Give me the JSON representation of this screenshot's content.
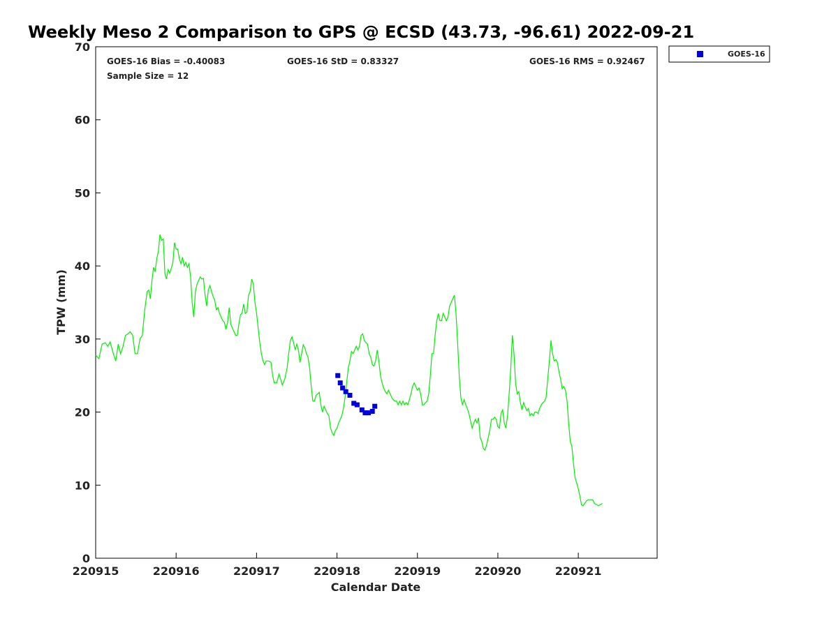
{
  "chart_data": {
    "type": "line",
    "title": "Weekly Meso 2 Comparison to GPS @ ECSD (43.73, -96.61) 2022-09-21",
    "xlabel": "Calendar Date",
    "ylabel": "TPW (mm)",
    "xlim": [
      0,
      6.98
    ],
    "ylim": [
      0,
      70
    ],
    "grid": false,
    "legend_position": "top-right",
    "x_tick_labels": [
      "220915",
      "220916",
      "220917",
      "220918",
      "220919",
      "220920",
      "220921"
    ],
    "y_tick_labels": [
      "0",
      "10",
      "20",
      "30",
      "40",
      "50",
      "60",
      "70"
    ],
    "stats": {
      "bias": "GOES-16 Bias = -0.40083",
      "std": "GOES-16 StD = 0.83327",
      "rms": "GOES-16 RMS = 0.92467",
      "sample": "Sample Size = 12"
    },
    "series": [
      {
        "color": "#00ee00",
        "style": "line",
        "points": [
          [
            0.0,
            27.8
          ],
          [
            0.04,
            27.3
          ],
          [
            0.08,
            29.3
          ],
          [
            0.12,
            29.5
          ],
          [
            0.15,
            29.0
          ],
          [
            0.18,
            29.6
          ],
          [
            0.22,
            28.0
          ],
          [
            0.25,
            27.0
          ],
          [
            0.28,
            29.3
          ],
          [
            0.31,
            28.0
          ],
          [
            0.34,
            29.0
          ],
          [
            0.37,
            30.5
          ],
          [
            0.4,
            30.7
          ],
          [
            0.43,
            31.0
          ],
          [
            0.46,
            30.5
          ],
          [
            0.49,
            28.0
          ],
          [
            0.52,
            28.0
          ],
          [
            0.55,
            30.0
          ],
          [
            0.58,
            30.5
          ],
          [
            0.61,
            34.0
          ],
          [
            0.64,
            36.5
          ],
          [
            0.66,
            36.7
          ],
          [
            0.68,
            35.5
          ],
          [
            0.7,
            38.0
          ],
          [
            0.72,
            39.8
          ],
          [
            0.74,
            39.2
          ],
          [
            0.76,
            41.0
          ],
          [
            0.78,
            42.0
          ],
          [
            0.8,
            44.3
          ],
          [
            0.82,
            43.5
          ],
          [
            0.84,
            43.7
          ],
          [
            0.86,
            39.0
          ],
          [
            0.88,
            38.2
          ],
          [
            0.9,
            39.5
          ],
          [
            0.92,
            39.0
          ],
          [
            0.94,
            39.7
          ],
          [
            0.96,
            40.5
          ],
          [
            0.98,
            43.2
          ],
          [
            1.0,
            42.3
          ],
          [
            1.02,
            42.3
          ],
          [
            1.04,
            41.0
          ],
          [
            1.06,
            40.3
          ],
          [
            1.08,
            41.2
          ],
          [
            1.1,
            40.0
          ],
          [
            1.12,
            40.5
          ],
          [
            1.14,
            39.8
          ],
          [
            1.16,
            40.3
          ],
          [
            1.18,
            38.5
          ],
          [
            1.2,
            35.0
          ],
          [
            1.22,
            33.0
          ],
          [
            1.24,
            36.5
          ],
          [
            1.26,
            37.5
          ],
          [
            1.28,
            38.0
          ],
          [
            1.3,
            38.5
          ],
          [
            1.32,
            38.2
          ],
          [
            1.34,
            38.3
          ],
          [
            1.36,
            36.0
          ],
          [
            1.38,
            34.5
          ],
          [
            1.4,
            36.7
          ],
          [
            1.42,
            37.3
          ],
          [
            1.44,
            36.5
          ],
          [
            1.46,
            35.8
          ],
          [
            1.48,
            35.3
          ],
          [
            1.5,
            34.0
          ],
          [
            1.52,
            34.3
          ],
          [
            1.54,
            33.5
          ],
          [
            1.56,
            33.0
          ],
          [
            1.58,
            32.5
          ],
          [
            1.6,
            32.3
          ],
          [
            1.62,
            31.3
          ],
          [
            1.64,
            32.3
          ],
          [
            1.66,
            34.3
          ],
          [
            1.68,
            32.0
          ],
          [
            1.7,
            31.5
          ],
          [
            1.72,
            31.0
          ],
          [
            1.74,
            30.5
          ],
          [
            1.76,
            30.5
          ],
          [
            1.78,
            32.0
          ],
          [
            1.8,
            33.3
          ],
          [
            1.82,
            33.5
          ],
          [
            1.84,
            34.8
          ],
          [
            1.86,
            33.5
          ],
          [
            1.88,
            33.7
          ],
          [
            1.9,
            36.0
          ],
          [
            1.92,
            36.5
          ],
          [
            1.94,
            38.2
          ],
          [
            1.96,
            37.5
          ],
          [
            1.98,
            35.0
          ],
          [
            2.0,
            33.5
          ],
          [
            2.02,
            31.5
          ],
          [
            2.04,
            29.5
          ],
          [
            2.06,
            28.0
          ],
          [
            2.08,
            27.0
          ],
          [
            2.1,
            26.5
          ],
          [
            2.12,
            27.0
          ],
          [
            2.15,
            27.0
          ],
          [
            2.18,
            26.8
          ],
          [
            2.2,
            25.0
          ],
          [
            2.22,
            24.0
          ],
          [
            2.25,
            24.0
          ],
          [
            2.28,
            25.2
          ],
          [
            2.3,
            24.5
          ],
          [
            2.32,
            23.7
          ],
          [
            2.35,
            24.5
          ],
          [
            2.38,
            26.0
          ],
          [
            2.4,
            28.0
          ],
          [
            2.42,
            29.8
          ],
          [
            2.44,
            30.3
          ],
          [
            2.46,
            29.5
          ],
          [
            2.48,
            28.5
          ],
          [
            2.5,
            29.3
          ],
          [
            2.52,
            28.5
          ],
          [
            2.54,
            26.8
          ],
          [
            2.56,
            28.0
          ],
          [
            2.58,
            29.2
          ],
          [
            2.6,
            28.8
          ],
          [
            2.62,
            28.0
          ],
          [
            2.64,
            27.5
          ],
          [
            2.66,
            26.0
          ],
          [
            2.68,
            23.5
          ],
          [
            2.7,
            21.5
          ],
          [
            2.72,
            21.5
          ],
          [
            2.74,
            22.3
          ],
          [
            2.76,
            22.5
          ],
          [
            2.78,
            22.7
          ],
          [
            2.8,
            21.0
          ],
          [
            2.82,
            20.0
          ],
          [
            2.84,
            20.8
          ],
          [
            2.86,
            20.3
          ],
          [
            2.88,
            19.8
          ],
          [
            2.9,
            19.5
          ],
          [
            2.92,
            17.8
          ],
          [
            2.94,
            17.2
          ],
          [
            2.96,
            16.8
          ],
          [
            2.98,
            17.5
          ],
          [
            3.0,
            17.8
          ],
          [
            3.02,
            18.5
          ],
          [
            3.04,
            19.0
          ],
          [
            3.06,
            19.5
          ],
          [
            3.08,
            20.5
          ],
          [
            3.1,
            22.0
          ],
          [
            3.12,
            24.0
          ],
          [
            3.14,
            26.0
          ],
          [
            3.16,
            27.0
          ],
          [
            3.18,
            28.3
          ],
          [
            3.2,
            28.0
          ],
          [
            3.22,
            28.5
          ],
          [
            3.24,
            29.0
          ],
          [
            3.26,
            28.5
          ],
          [
            3.28,
            29.0
          ],
          [
            3.3,
            30.5
          ],
          [
            3.32,
            30.7
          ],
          [
            3.34,
            29.8
          ],
          [
            3.36,
            29.5
          ],
          [
            3.38,
            29.3
          ],
          [
            3.4,
            28.0
          ],
          [
            3.42,
            27.5
          ],
          [
            3.44,
            26.5
          ],
          [
            3.46,
            26.3
          ],
          [
            3.48,
            27.0
          ],
          [
            3.5,
            28.5
          ],
          [
            3.52,
            27.0
          ],
          [
            3.54,
            25.0
          ],
          [
            3.56,
            24.0
          ],
          [
            3.58,
            23.3
          ],
          [
            3.6,
            22.8
          ],
          [
            3.62,
            22.5
          ],
          [
            3.64,
            23.0
          ],
          [
            3.66,
            22.5
          ],
          [
            3.68,
            22.0
          ],
          [
            3.7,
            21.7
          ],
          [
            3.72,
            21.5
          ],
          [
            3.74,
            21.5
          ],
          [
            3.76,
            21.0
          ],
          [
            3.78,
            21.5
          ],
          [
            3.8,
            21.0
          ],
          [
            3.82,
            21.5
          ],
          [
            3.84,
            21.0
          ],
          [
            3.86,
            21.3
          ],
          [
            3.88,
            21.0
          ],
          [
            3.9,
            21.7
          ],
          [
            3.92,
            22.5
          ],
          [
            3.94,
            23.5
          ],
          [
            3.96,
            24.0
          ],
          [
            3.98,
            23.5
          ],
          [
            4.0,
            23.0
          ],
          [
            4.02,
            23.3
          ],
          [
            4.04,
            22.5
          ],
          [
            4.06,
            21.0
          ],
          [
            4.08,
            21.0
          ],
          [
            4.1,
            21.3
          ],
          [
            4.12,
            21.5
          ],
          [
            4.14,
            22.5
          ],
          [
            4.16,
            25.0
          ],
          [
            4.18,
            28.0
          ],
          [
            4.2,
            28.0
          ],
          [
            4.22,
            30.5
          ],
          [
            4.24,
            32.5
          ],
          [
            4.26,
            33.5
          ],
          [
            4.28,
            32.5
          ],
          [
            4.3,
            32.5
          ],
          [
            4.32,
            33.5
          ],
          [
            4.34,
            33.0
          ],
          [
            4.36,
            32.5
          ],
          [
            4.38,
            33.0
          ],
          [
            4.4,
            34.5
          ],
          [
            4.42,
            35.0
          ],
          [
            4.44,
            35.5
          ],
          [
            4.46,
            36.0
          ],
          [
            4.48,
            33.5
          ],
          [
            4.5,
            29.5
          ],
          [
            4.52,
            25.0
          ],
          [
            4.54,
            22.0
          ],
          [
            4.56,
            21.0
          ],
          [
            4.58,
            21.7
          ],
          [
            4.6,
            21.0
          ],
          [
            4.62,
            20.5
          ],
          [
            4.64,
            19.8
          ],
          [
            4.66,
            18.8
          ],
          [
            4.68,
            17.8
          ],
          [
            4.7,
            18.5
          ],
          [
            4.72,
            19.0
          ],
          [
            4.74,
            18.5
          ],
          [
            4.76,
            19.2
          ],
          [
            4.78,
            16.5
          ],
          [
            4.8,
            16.0
          ],
          [
            4.82,
            15.0
          ],
          [
            4.84,
            14.8
          ],
          [
            4.86,
            15.5
          ],
          [
            4.88,
            16.5
          ],
          [
            4.9,
            17.5
          ],
          [
            4.92,
            19.0
          ],
          [
            4.94,
            19.0
          ],
          [
            4.96,
            19.3
          ],
          [
            4.98,
            19.0
          ],
          [
            5.0,
            18.0
          ],
          [
            5.02,
            17.8
          ],
          [
            5.04,
            19.8
          ],
          [
            5.06,
            20.3
          ],
          [
            5.08,
            18.5
          ],
          [
            5.1,
            17.8
          ],
          [
            5.12,
            19.5
          ],
          [
            5.14,
            22.5
          ],
          [
            5.16,
            26.0
          ],
          [
            5.18,
            30.5
          ],
          [
            5.2,
            28.0
          ],
          [
            5.22,
            24.0
          ],
          [
            5.24,
            22.5
          ],
          [
            5.26,
            22.8
          ],
          [
            5.28,
            21.3
          ],
          [
            5.3,
            20.3
          ],
          [
            5.32,
            21.3
          ],
          [
            5.34,
            20.7
          ],
          [
            5.36,
            20.2
          ],
          [
            5.38,
            20.5
          ],
          [
            5.4,
            19.5
          ],
          [
            5.42,
            19.8
          ],
          [
            5.44,
            19.5
          ],
          [
            5.46,
            20.0
          ],
          [
            5.48,
            20.0
          ],
          [
            5.5,
            19.8
          ],
          [
            5.52,
            20.5
          ],
          [
            5.54,
            21.0
          ],
          [
            5.56,
            21.3
          ],
          [
            5.58,
            21.5
          ],
          [
            5.6,
            22.0
          ],
          [
            5.62,
            24.5
          ],
          [
            5.64,
            27.0
          ],
          [
            5.66,
            29.8
          ],
          [
            5.68,
            28.0
          ],
          [
            5.7,
            27.0
          ],
          [
            5.72,
            27.2
          ],
          [
            5.74,
            26.8
          ],
          [
            5.76,
            25.5
          ],
          [
            5.78,
            24.5
          ],
          [
            5.8,
            23.2
          ],
          [
            5.82,
            23.5
          ],
          [
            5.84,
            23.0
          ],
          [
            5.86,
            21.5
          ],
          [
            5.88,
            18.5
          ],
          [
            5.9,
            16.0
          ],
          [
            5.92,
            15.3
          ],
          [
            5.94,
            13.0
          ],
          [
            5.96,
            11.0
          ],
          [
            5.98,
            10.3
          ],
          [
            6.0,
            9.5
          ],
          [
            6.02,
            8.5
          ],
          [
            6.04,
            7.3
          ],
          [
            6.06,
            7.2
          ],
          [
            6.08,
            7.5
          ],
          [
            6.1,
            7.8
          ],
          [
            6.12,
            8.0
          ],
          [
            6.14,
            8.0
          ],
          [
            6.16,
            8.0
          ],
          [
            6.18,
            8.0
          ],
          [
            6.2,
            7.5
          ],
          [
            6.25,
            7.2
          ],
          [
            6.3,
            7.5
          ]
        ]
      },
      {
        "name": "GOES-16",
        "color": "#0000dd",
        "style": "markers",
        "points": [
          [
            3.01,
            25.0
          ],
          [
            3.04,
            24.0
          ],
          [
            3.07,
            23.3
          ],
          [
            3.11,
            22.8
          ],
          [
            3.16,
            22.3
          ],
          [
            3.21,
            21.2
          ],
          [
            3.25,
            21.0
          ],
          [
            3.31,
            20.3
          ],
          [
            3.35,
            19.9
          ],
          [
            3.39,
            19.9
          ],
          [
            3.44,
            20.1
          ],
          [
            3.47,
            20.8
          ]
        ]
      }
    ]
  }
}
